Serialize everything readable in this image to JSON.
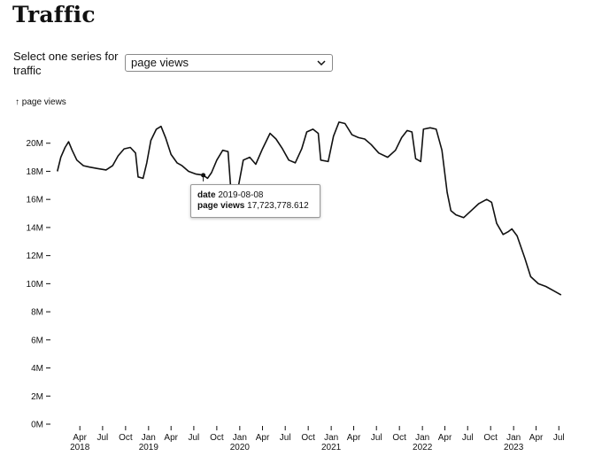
{
  "page": {
    "title": "Traffic"
  },
  "controls": {
    "series_label": "Select one series for traffic",
    "series_selected": "page views"
  },
  "tooltip": {
    "date_key": "date",
    "date_value": "2019-08-08",
    "value_key": "page views",
    "value_value": "17,723,778.612"
  },
  "chart_data": {
    "type": "line",
    "title": "",
    "xlabel": "",
    "ylabel": "↑ page views",
    "ylim": [
      0,
      22000000
    ],
    "xlim": [
      "2017-12-15",
      "2023-08-01"
    ],
    "grid": false,
    "y_ticks": [
      {
        "value": 0,
        "label": "0M"
      },
      {
        "value": 2000000,
        "label": "2M"
      },
      {
        "value": 4000000,
        "label": "4M"
      },
      {
        "value": 6000000,
        "label": "6M"
      },
      {
        "value": 8000000,
        "label": "8M"
      },
      {
        "value": 10000000,
        "label": "10M"
      },
      {
        "value": 12000000,
        "label": "12M"
      },
      {
        "value": 14000000,
        "label": "14M"
      },
      {
        "value": 16000000,
        "label": "16M"
      },
      {
        "value": 18000000,
        "label": "18M"
      },
      {
        "value": 20000000,
        "label": "20M"
      }
    ],
    "x_ticks": [
      {
        "date": "2018-04-01",
        "label": "Apr",
        "year": "2018"
      },
      {
        "date": "2018-07-01",
        "label": "Jul",
        "year": ""
      },
      {
        "date": "2018-10-01",
        "label": "Oct",
        "year": ""
      },
      {
        "date": "2019-01-01",
        "label": "Jan",
        "year": "2019"
      },
      {
        "date": "2019-04-01",
        "label": "Apr",
        "year": ""
      },
      {
        "date": "2019-07-01",
        "label": "Jul",
        "year": ""
      },
      {
        "date": "2019-10-01",
        "label": "Oct",
        "year": ""
      },
      {
        "date": "2020-01-01",
        "label": "Jan",
        "year": "2020"
      },
      {
        "date": "2020-04-01",
        "label": "Apr",
        "year": ""
      },
      {
        "date": "2020-07-01",
        "label": "Jul",
        "year": ""
      },
      {
        "date": "2020-10-01",
        "label": "Oct",
        "year": ""
      },
      {
        "date": "2021-01-01",
        "label": "Jan",
        "year": "2021"
      },
      {
        "date": "2021-04-01",
        "label": "Apr",
        "year": ""
      },
      {
        "date": "2021-07-01",
        "label": "Jul",
        "year": ""
      },
      {
        "date": "2021-10-01",
        "label": "Oct",
        "year": ""
      },
      {
        "date": "2022-01-01",
        "label": "Jan",
        "year": "2022"
      },
      {
        "date": "2022-04-01",
        "label": "Apr",
        "year": ""
      },
      {
        "date": "2022-07-01",
        "label": "Jul",
        "year": ""
      },
      {
        "date": "2022-10-01",
        "label": "Oct",
        "year": ""
      },
      {
        "date": "2023-01-01",
        "label": "Jan",
        "year": "2023"
      },
      {
        "date": "2023-04-01",
        "label": "Apr",
        "year": ""
      },
      {
        "date": "2023-07-01",
        "label": "Jul",
        "year": ""
      }
    ],
    "series": [
      {
        "color": "#111111",
        "points": [
          [
            "2018-01-01",
            18000000
          ],
          [
            "2018-01-15",
            19000000
          ],
          [
            "2018-02-01",
            19700000
          ],
          [
            "2018-02-15",
            20100000
          ],
          [
            "2018-03-01",
            19500000
          ],
          [
            "2018-03-20",
            18800000
          ],
          [
            "2018-04-15",
            18400000
          ],
          [
            "2018-05-10",
            18300000
          ],
          [
            "2018-06-10",
            18200000
          ],
          [
            "2018-07-15",
            18100000
          ],
          [
            "2018-08-10",
            18400000
          ],
          [
            "2018-09-01",
            19100000
          ],
          [
            "2018-09-25",
            19600000
          ],
          [
            "2018-10-20",
            19700000
          ],
          [
            "2018-11-10",
            19300000
          ],
          [
            "2018-11-20",
            17600000
          ],
          [
            "2018-12-10",
            17500000
          ],
          [
            "2018-12-25",
            18600000
          ],
          [
            "2019-01-10",
            20200000
          ],
          [
            "2019-02-01",
            21000000
          ],
          [
            "2019-02-20",
            21200000
          ],
          [
            "2019-03-10",
            20400000
          ],
          [
            "2019-04-01",
            19200000
          ],
          [
            "2019-04-25",
            18600000
          ],
          [
            "2019-05-15",
            18400000
          ],
          [
            "2019-06-10",
            18000000
          ],
          [
            "2019-07-10",
            17800000
          ],
          [
            "2019-08-08",
            17723778.612
          ],
          [
            "2019-08-25",
            17500000
          ],
          [
            "2019-09-10",
            17900000
          ],
          [
            "2019-10-01",
            18800000
          ],
          [
            "2019-10-25",
            19500000
          ],
          [
            "2019-11-15",
            19400000
          ],
          [
            "2019-11-25",
            17000000
          ],
          [
            "2019-12-10",
            16600000
          ],
          [
            "2019-12-25",
            16800000
          ],
          [
            "2020-01-15",
            18800000
          ],
          [
            "2020-02-10",
            19000000
          ],
          [
            "2020-03-05",
            18500000
          ],
          [
            "2020-04-01",
            19600000
          ],
          [
            "2020-05-01",
            20700000
          ],
          [
            "2020-05-25",
            20300000
          ],
          [
            "2020-06-20",
            19600000
          ],
          [
            "2020-07-15",
            18800000
          ],
          [
            "2020-08-10",
            18600000
          ],
          [
            "2020-09-05",
            19600000
          ],
          [
            "2020-09-25",
            20800000
          ],
          [
            "2020-10-20",
            21000000
          ],
          [
            "2020-11-10",
            20700000
          ],
          [
            "2020-11-20",
            18800000
          ],
          [
            "2020-12-20",
            18700000
          ],
          [
            "2021-01-10",
            20500000
          ],
          [
            "2021-02-01",
            21500000
          ],
          [
            "2021-02-25",
            21400000
          ],
          [
            "2021-03-25",
            20600000
          ],
          [
            "2021-04-20",
            20400000
          ],
          [
            "2021-05-15",
            20300000
          ],
          [
            "2021-06-10",
            19900000
          ],
          [
            "2021-07-10",
            19300000
          ],
          [
            "2021-08-15",
            19000000
          ],
          [
            "2021-09-15",
            19500000
          ],
          [
            "2021-10-10",
            20400000
          ],
          [
            "2021-11-01",
            20900000
          ],
          [
            "2021-11-20",
            20800000
          ],
          [
            "2021-12-05",
            18900000
          ],
          [
            "2021-12-25",
            18700000
          ],
          [
            "2022-01-05",
            21000000
          ],
          [
            "2022-02-01",
            21100000
          ],
          [
            "2022-02-25",
            21000000
          ],
          [
            "2022-03-20",
            19500000
          ],
          [
            "2022-04-10",
            16500000
          ],
          [
            "2022-04-25",
            15200000
          ],
          [
            "2022-05-15",
            14900000
          ],
          [
            "2022-06-15",
            14700000
          ],
          [
            "2022-07-15",
            15200000
          ],
          [
            "2022-08-15",
            15700000
          ],
          [
            "2022-09-15",
            16000000
          ],
          [
            "2022-10-05",
            15800000
          ],
          [
            "2022-10-25",
            14300000
          ],
          [
            "2022-11-20",
            13500000
          ],
          [
            "2022-12-10",
            13700000
          ],
          [
            "2022-12-25",
            13900000
          ],
          [
            "2023-01-15",
            13400000
          ],
          [
            "2023-02-15",
            11800000
          ],
          [
            "2023-03-10",
            10500000
          ],
          [
            "2023-04-10",
            10000000
          ],
          [
            "2023-05-10",
            9800000
          ],
          [
            "2023-06-10",
            9500000
          ],
          [
            "2023-07-10",
            9200000
          ]
        ]
      }
    ],
    "highlight": {
      "date": "2019-08-08",
      "value": 17723778.612
    }
  }
}
